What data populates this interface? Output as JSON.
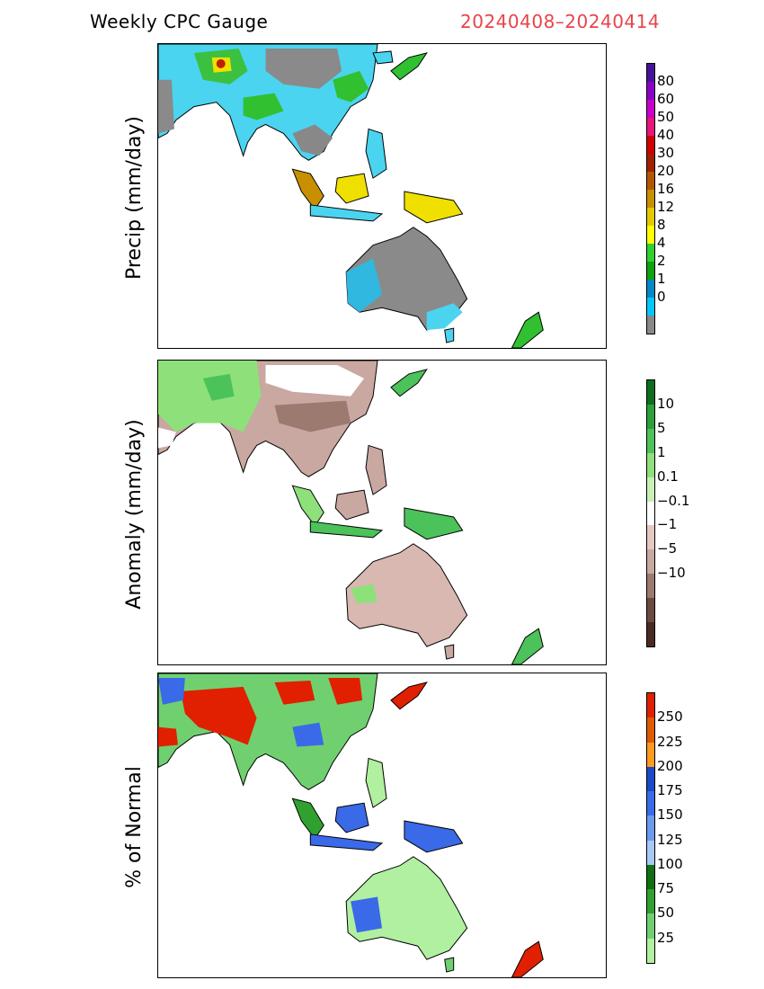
{
  "header": {
    "left_title": "Weekly CPC Gauge",
    "right_title": "20240408–20240414"
  },
  "panels": [
    {
      "ylabel": "Precip (mm/day)",
      "colorbar": {
        "colors": [
          "#461398",
          "#8800c8",
          "#c800c8",
          "#e8157b",
          "#d00000",
          "#a02000",
          "#b45600",
          "#c89000",
          "#e6c800",
          "#ffff00",
          "#30d030",
          "#10a010",
          "#0088c8",
          "#00c8ff",
          "#888888"
        ],
        "labels": [
          "80",
          "60",
          "50",
          "40",
          "30",
          "20",
          "16",
          "12",
          "8",
          "4",
          "2",
          "1",
          "0"
        ]
      }
    },
    {
      "ylabel": "Anomaly (mm/day)",
      "colorbar": {
        "colors": [
          "#0e6e1e",
          "#2ea03a",
          "#4cc25a",
          "#8ee07a",
          "#c8f0b8",
          "#ffffff",
          "#e6c8c0",
          "#c8a8a0",
          "#9c7a70",
          "#6c4a40",
          "#4a2a22"
        ],
        "labels": [
          "10",
          "5",
          "1",
          "0.1",
          "−0.1",
          "−1",
          "−5",
          "−10"
        ]
      }
    },
    {
      "ylabel": "% of Normal",
      "colorbar": {
        "colors": [
          "#e02000",
          "#e05a00",
          "#ff9a20",
          "#1a4ac8",
          "#3a6ae8",
          "#6a9af0",
          "#a8c8f8",
          "#107010",
          "#30a030",
          "#70d070",
          "#b0f0a0"
        ],
        "labels": [
          "250",
          "225",
          "200",
          "175",
          "150",
          "125",
          "100",
          "75",
          "50",
          "25"
        ]
      }
    }
  ]
}
